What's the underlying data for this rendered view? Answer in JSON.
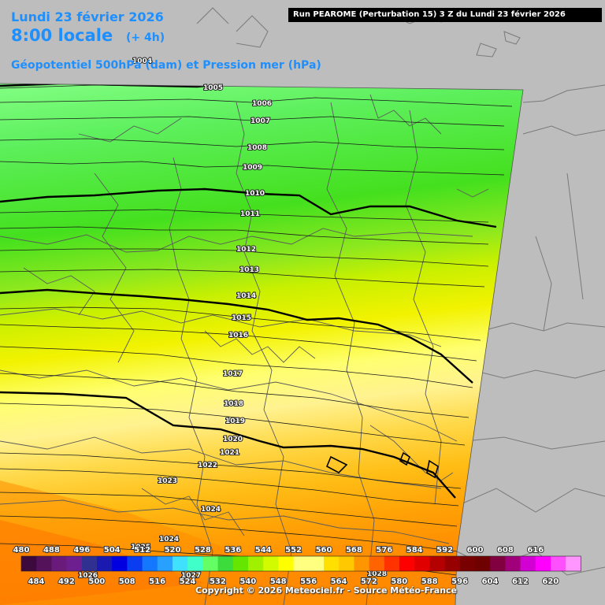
{
  "header": {
    "date": "Lundi 23 février 2026",
    "local_time": "8:00 locale",
    "offset": "(+ 4h)",
    "field": "Géopotentiel 500hPa (dam) et Pression mer (hPa)",
    "run_title": "Run PEAROME (Perturbation 15) 3 Z du Lundi 23 février 2026"
  },
  "footer": {
    "copyright": "Copyright © 2026 Meteociel.fr - Source Météo-France"
  },
  "isobars": {
    "labels": [
      "1004",
      "1005",
      "1006",
      "1007",
      "1008",
      "1009",
      "1010",
      "1011",
      "1012",
      "1013",
      "1014",
      "1015",
      "1016",
      "1017",
      "1018",
      "1019",
      "1020",
      "1021",
      "1022",
      "1023",
      "1024",
      "1024",
      "1025",
      "1026",
      "1027",
      "1028"
    ]
  },
  "scale": {
    "upper_labels": [
      "480",
      "488",
      "496",
      "504",
      "512",
      "520",
      "528",
      "536",
      "544",
      "552",
      "560",
      "568",
      "576",
      "584",
      "592",
      "600",
      "608",
      "616"
    ],
    "lower_labels": [
      "484",
      "492",
      "500",
      "508",
      "516",
      "524",
      "532",
      "540",
      "548",
      "556",
      "564",
      "572",
      "580",
      "588",
      "596",
      "604",
      "612",
      "620"
    ],
    "colors": [
      "#3d0a3d",
      "#53125a",
      "#6a1a7a",
      "#6e1f8f",
      "#303090",
      "#1a1ab0",
      "#0000e0",
      "#0a3cf0",
      "#1478ff",
      "#28a0ff",
      "#40e0ff",
      "#40ffc8",
      "#64ff64",
      "#3cdc3c",
      "#64e600",
      "#a0f000",
      "#d2fa00",
      "#ffff00",
      "#ffff80",
      "#ffff80",
      "#ffe000",
      "#ffc800",
      "#ff9600",
      "#ff6400",
      "#ff3200",
      "#ff0000",
      "#e00000",
      "#b40000",
      "#960000",
      "#780000",
      "#6e0000",
      "#800040",
      "#a0007a",
      "#d200d2",
      "#ff00ff",
      "#ff50ff",
      "#ff96ff"
    ]
  }
}
